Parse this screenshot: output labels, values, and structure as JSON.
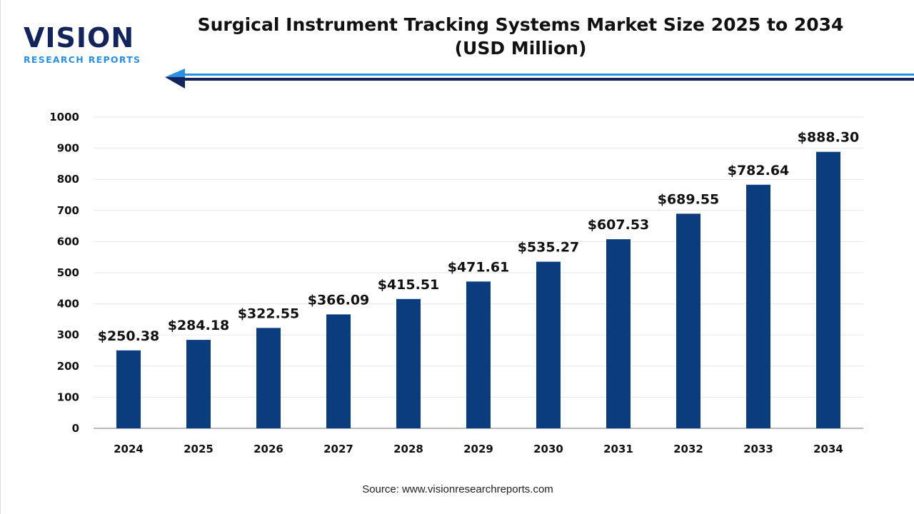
{
  "logo": {
    "line1": "VISION",
    "line2": "RESEARCH REPORTS"
  },
  "title_line1": "Surgical Instrument Tracking Systems Market Size 2025 to 2034",
  "title_line2": "(USD Million)",
  "source": "Source: www.visionresearchreports.com",
  "colors": {
    "bar": "#0b3d7e",
    "arrow_dark": "#13235b",
    "arrow_light": "#2a8fe0",
    "grid": "#e6e6e6",
    "axis": "#bbbbbb"
  },
  "chart_data": {
    "type": "bar",
    "title": "Surgical Instrument Tracking Systems Market Size 2025 to 2034 (USD Million)",
    "categories": [
      "2024",
      "2025",
      "2026",
      "2027",
      "2028",
      "2029",
      "2030",
      "2031",
      "2032",
      "2033",
      "2034"
    ],
    "values": [
      250.38,
      284.18,
      322.55,
      366.09,
      415.51,
      471.61,
      535.27,
      607.53,
      689.55,
      782.64,
      888.3
    ],
    "data_labels": [
      "$250.38",
      "$284.18",
      "$322.55",
      "$366.09",
      "$415.51",
      "$471.61",
      "$535.27",
      "$607.53",
      "$689.55",
      "$782.64",
      "$888.30"
    ],
    "ylim": [
      0,
      1000
    ],
    "yticks": [
      0,
      100,
      200,
      300,
      400,
      500,
      600,
      700,
      800,
      900,
      1000
    ],
    "grid": true,
    "legend": "none",
    "xlabel": "",
    "ylabel": ""
  }
}
